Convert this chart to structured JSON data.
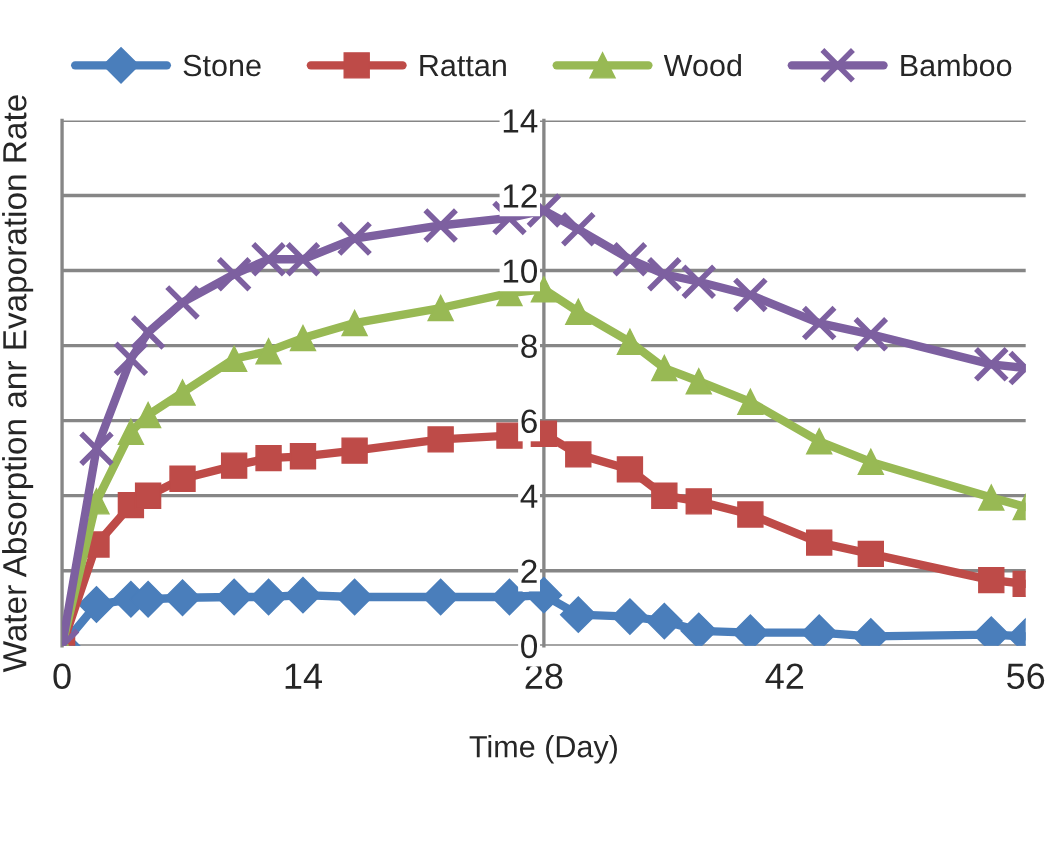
{
  "chart_data": {
    "type": "line",
    "xlabel": "Time (Day)",
    "ylabel": "Water Absorption anr Evaporation Rate",
    "x": [
      0,
      2,
      4,
      5,
      7,
      10,
      12,
      14,
      17,
      22,
      26,
      28,
      30,
      33,
      35,
      37,
      40,
      44,
      47,
      54,
      56
    ],
    "series": [
      {
        "name": "Stone",
        "color": "#4a7ebb",
        "marker": "diamond",
        "values": [
          0,
          1.1,
          1.24,
          1.24,
          1.28,
          1.3,
          1.3,
          1.35,
          1.3,
          1.3,
          1.3,
          1.35,
          0.83,
          0.78,
          0.66,
          0.4,
          0.35,
          0.35,
          0.25,
          0.3,
          0.25
        ]
      },
      {
        "name": "Rattan",
        "color": "#be4b48",
        "marker": "square",
        "values": [
          0,
          2.7,
          3.75,
          4.0,
          4.45,
          4.8,
          5.0,
          5.05,
          5.2,
          5.5,
          5.6,
          5.65,
          5.1,
          4.7,
          4.0,
          3.85,
          3.5,
          2.75,
          2.45,
          1.75,
          1.65
        ]
      },
      {
        "name": "Wood",
        "color": "#98b954",
        "marker": "triangle",
        "values": [
          0,
          3.85,
          5.7,
          6.15,
          6.75,
          7.65,
          7.85,
          8.2,
          8.6,
          9.0,
          9.4,
          9.5,
          8.9,
          8.1,
          7.4,
          7.05,
          6.5,
          5.45,
          4.9,
          3.95,
          3.7
        ]
      },
      {
        "name": "Bamboo",
        "color": "#7d60a0",
        "marker": "cross",
        "values": [
          0,
          5.25,
          7.65,
          8.35,
          9.15,
          9.9,
          10.3,
          10.3,
          10.85,
          11.2,
          11.4,
          11.6,
          11.1,
          10.3,
          9.9,
          9.7,
          9.35,
          8.6,
          8.3,
          7.5,
          7.4
        ]
      }
    ],
    "xlim": [
      0,
      56
    ],
    "xticks": [
      0,
      14,
      28,
      42,
      56
    ],
    "ylim": [
      0,
      14
    ],
    "yticks": [
      0,
      2,
      4,
      6,
      8,
      10,
      12,
      14
    ],
    "grid": "y",
    "legend": "top",
    "line_style": "solid"
  }
}
